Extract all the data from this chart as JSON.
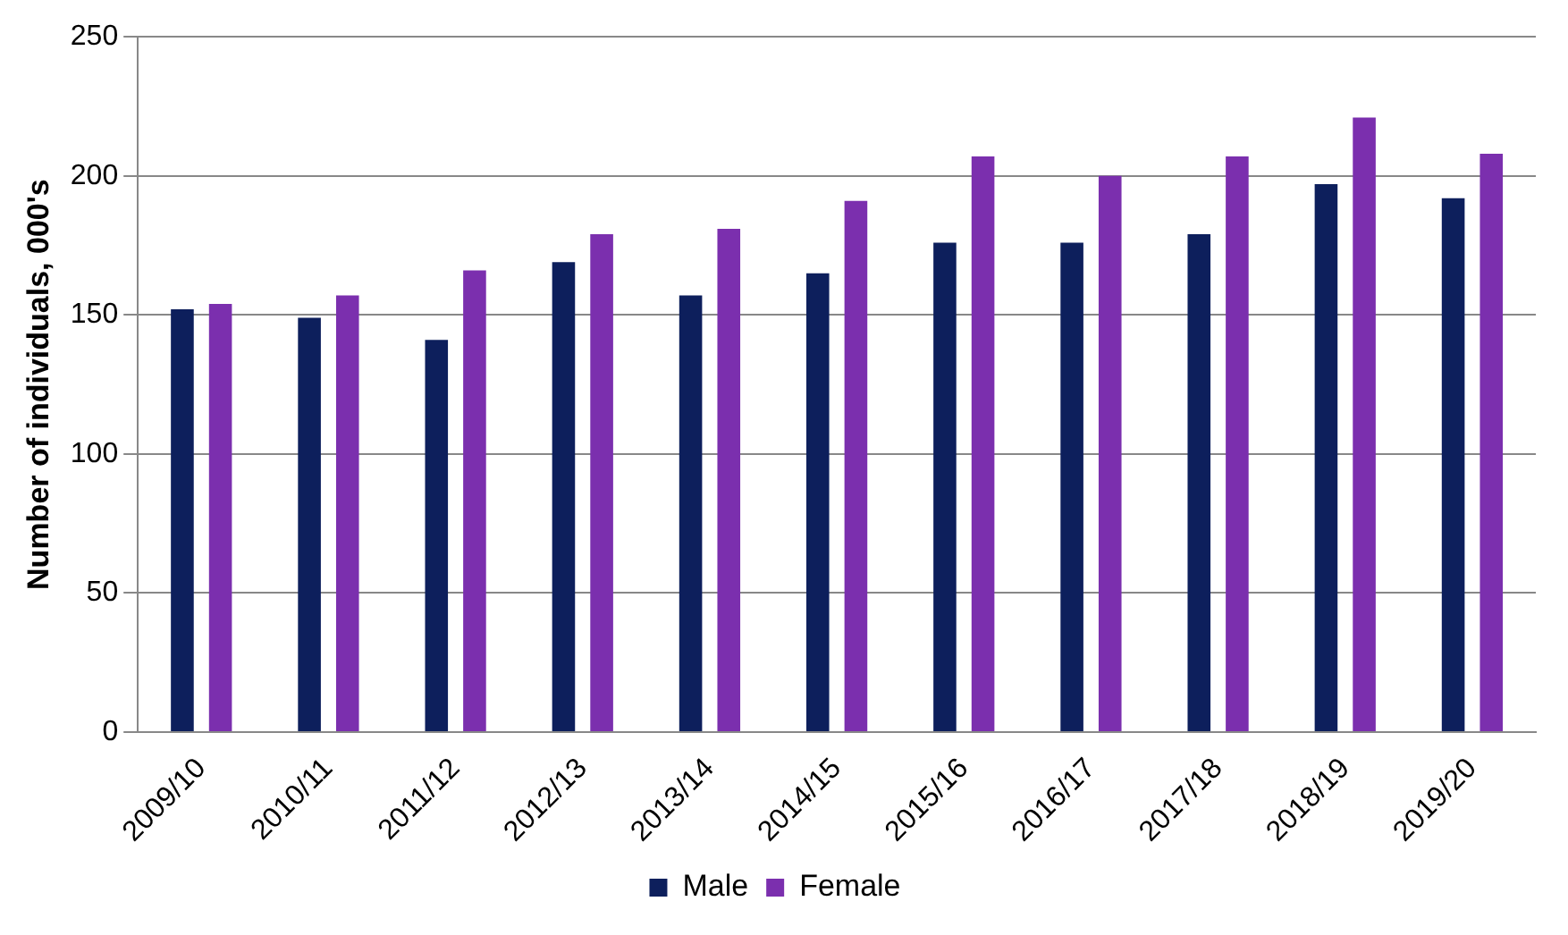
{
  "chart_data": {
    "type": "bar",
    "ylabel": "Number of individuals, 000's",
    "categories": [
      "2009/10",
      "2010/11",
      "2011/12",
      "2012/13",
      "2013/14",
      "2014/15",
      "2015/16",
      "2016/17",
      "2017/18",
      "2018/19",
      "2019/20"
    ],
    "series": [
      {
        "name": "Male",
        "color": "#0d1f5c",
        "values": [
          152,
          149,
          141,
          169,
          157,
          165,
          176,
          176,
          179,
          197,
          192
        ]
      },
      {
        "name": "Female",
        "color": "#7b2fae",
        "values": [
          154,
          157,
          166,
          179,
          181,
          191,
          207,
          200,
          207,
          221,
          208
        ]
      }
    ],
    "ylim": [
      0,
      250
    ],
    "yticks": [
      0,
      50,
      100,
      150,
      200,
      250
    ],
    "grid": "y",
    "legend": "bottom"
  }
}
